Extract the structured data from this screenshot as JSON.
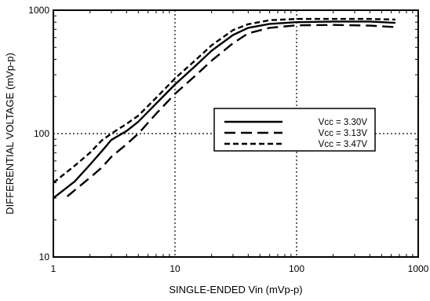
{
  "chart_data": {
    "type": "line",
    "xlabel": "SINGLE-ENDED Vin (mVp-p)",
    "ylabel": "DIFFERENTIAL VOLTAGE (mVp-p)",
    "xscale": "log",
    "yscale": "log",
    "xlim": [
      1,
      1000
    ],
    "ylim": [
      10,
      1000
    ],
    "x_ticks": [
      1,
      10,
      100,
      1000
    ],
    "x_tick_labels": [
      "1",
      "10",
      "100",
      "1000"
    ],
    "y_ticks": [
      10,
      100,
      1000
    ],
    "y_tick_labels": [
      "10",
      "100",
      "1000"
    ],
    "grid": "dotted at major decades",
    "legend_position": "center-right",
    "series": [
      {
        "name": "Vcc = 3.30V",
        "line_style": "solid",
        "x": [
          1,
          1.5,
          2,
          2.5,
          3,
          4,
          5,
          7,
          10,
          15,
          20,
          30,
          40,
          60,
          100,
          200,
          400,
          650
        ],
        "y": [
          30,
          41,
          56,
          72,
          89,
          105,
          125,
          175,
          250,
          360,
          470,
          630,
          720,
          775,
          800,
          810,
          810,
          790
        ]
      },
      {
        "name": "Vcc = 3.13V",
        "line_style": "long dash",
        "x": [
          1.3,
          2,
          2.5,
          3,
          4,
          5,
          7,
          10,
          15,
          20,
          30,
          40,
          60,
          100,
          200,
          400,
          650
        ],
        "y": [
          31,
          44,
          53,
          65,
          82,
          100,
          145,
          210,
          300,
          390,
          540,
          650,
          720,
          755,
          760,
          750,
          730
        ]
      },
      {
        "name": "Vcc = 3.47V",
        "line_style": "short dash",
        "x": [
          1,
          1.5,
          2,
          2.5,
          3,
          4,
          5,
          7,
          10,
          15,
          20,
          30,
          40,
          60,
          100,
          200,
          400,
          650
        ],
        "y": [
          40,
          55,
          70,
          88,
          100,
          120,
          140,
          195,
          280,
          400,
          520,
          690,
          770,
          830,
          850,
          850,
          850,
          840
        ]
      }
    ]
  }
}
